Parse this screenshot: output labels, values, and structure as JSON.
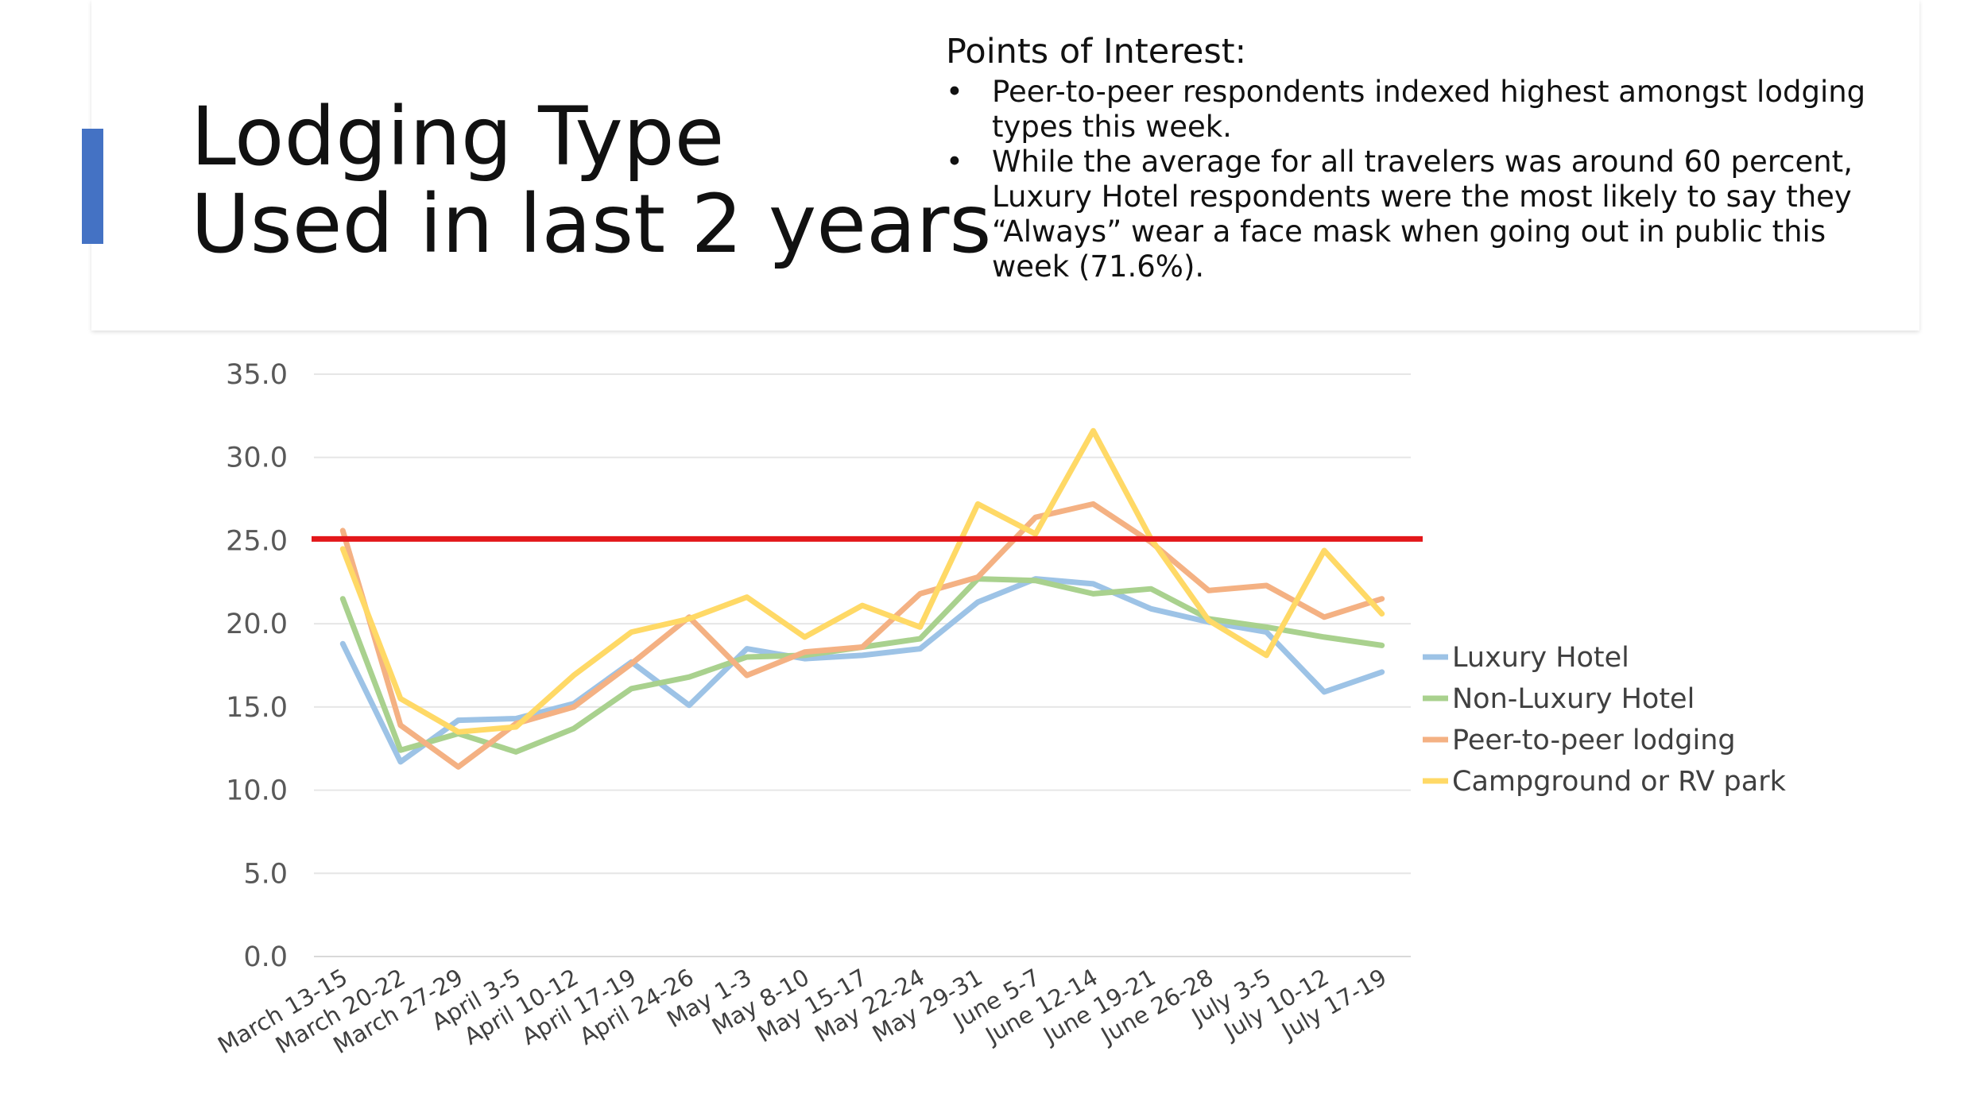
{
  "slide": {
    "title_line1": "Lodging Type",
    "title_line2": "Used in last 2 years",
    "poi_heading": "Points of Interest:",
    "bullets": [
      "Peer-to-peer respondents indexed highest amongst lodging types this week.",
      "While the average for all travelers was around 60 percent, Luxury Hotel respondents were the most likely to say they “Always” wear a face mask when going out in public this week (71.6%)."
    ],
    "bullet_glyph": "•",
    "accent_color": "#4472c4"
  },
  "chart_data": {
    "type": "line",
    "categories": [
      "March 13-15",
      "March 20-22",
      "March 27-29",
      "April 3-5",
      "April 10-12",
      "April 17-19",
      "April 24-26",
      "May 1-3",
      "May 8-10",
      "May 15-17",
      "May 22-24",
      "May 29-31",
      "June 5-7",
      "June 12-14",
      "June 19-21",
      "June 26-28",
      "July 3-5",
      "July 10-12",
      "July 17-19"
    ],
    "series": [
      {
        "name": "Luxury Hotel",
        "color": "#9dc3e6",
        "values": [
          18.8,
          11.7,
          14.2,
          14.3,
          15.2,
          17.7,
          15.1,
          18.5,
          17.9,
          18.1,
          18.5,
          21.3,
          22.7,
          22.4,
          20.9,
          20.1,
          19.5,
          15.9,
          17.1
        ]
      },
      {
        "name": "Non-Luxury Hotel",
        "color": "#a9d18e",
        "values": [
          21.5,
          12.4,
          13.4,
          12.3,
          13.7,
          16.1,
          16.8,
          18.0,
          18.1,
          18.6,
          19.1,
          22.7,
          22.6,
          21.8,
          22.1,
          20.3,
          19.8,
          19.2,
          18.7
        ]
      },
      {
        "name": "Peer-to-peer lodging",
        "color": "#f4b183",
        "values": [
          25.6,
          13.9,
          11.4,
          14.0,
          15.0,
          17.6,
          20.4,
          16.9,
          18.3,
          18.6,
          21.8,
          22.8,
          26.4,
          27.2,
          24.9,
          22.0,
          22.3,
          20.4,
          21.5
        ]
      },
      {
        "name": "Campground or RV park",
        "color": "#ffd966",
        "values": [
          24.5,
          15.5,
          13.5,
          13.8,
          16.9,
          19.5,
          20.3,
          21.6,
          19.2,
          21.1,
          19.8,
          27.2,
          25.4,
          31.6,
          25.1,
          20.2,
          18.1,
          24.4,
          20.6
        ]
      }
    ],
    "reference_line": {
      "value": 25.1,
      "color": "#e3171a"
    },
    "ylim": [
      0,
      35
    ],
    "yticks": [
      "0.0",
      "5.0",
      "10.0",
      "15.0",
      "20.0",
      "25.0",
      "30.0",
      "35.0"
    ],
    "grid": true,
    "legend_position": "right",
    "xlabel": "",
    "ylabel": ""
  }
}
